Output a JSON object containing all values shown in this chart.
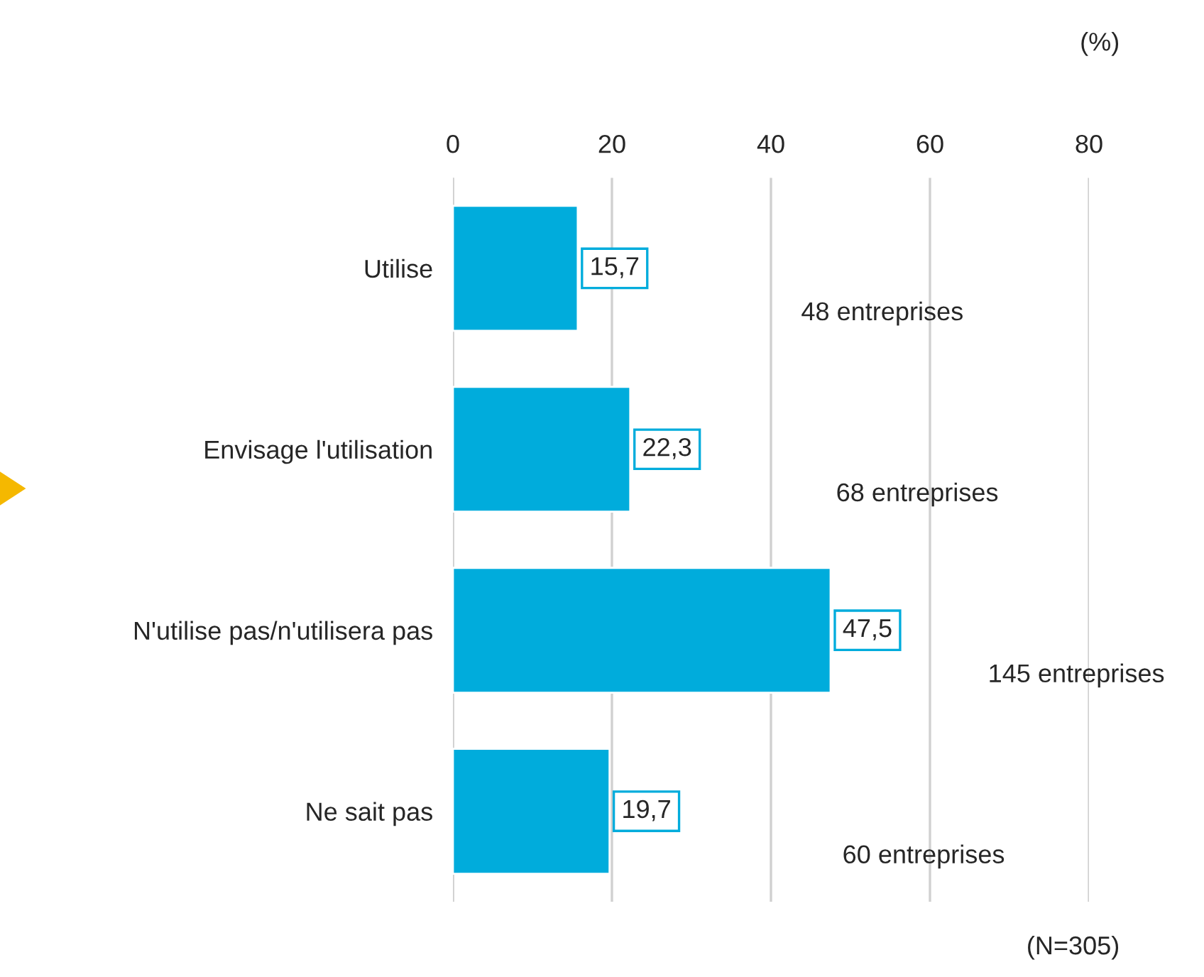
{
  "chart_data": {
    "type": "bar",
    "orientation": "horizontal",
    "categories": [
      "Utilise",
      "Envisage l'utilisation",
      "N'utilise pas/n'utilisera pas",
      "Ne sait pas"
    ],
    "values": [
      15.7,
      22.3,
      47.5,
      19.7
    ],
    "color": "#00acdc",
    "value_labels": [
      "15,7",
      "22,3",
      "47,5",
      "19,7"
    ],
    "xlim": [
      0,
      80
    ],
    "xticks": [
      0,
      20,
      40,
      60,
      80
    ],
    "grid": "x",
    "legend": false,
    "annotations": [
      "48 entreprises",
      "68 entreprises",
      "145 entreprises",
      "60 entreprises",
      "(%)",
      "(N=305)"
    ]
  }
}
